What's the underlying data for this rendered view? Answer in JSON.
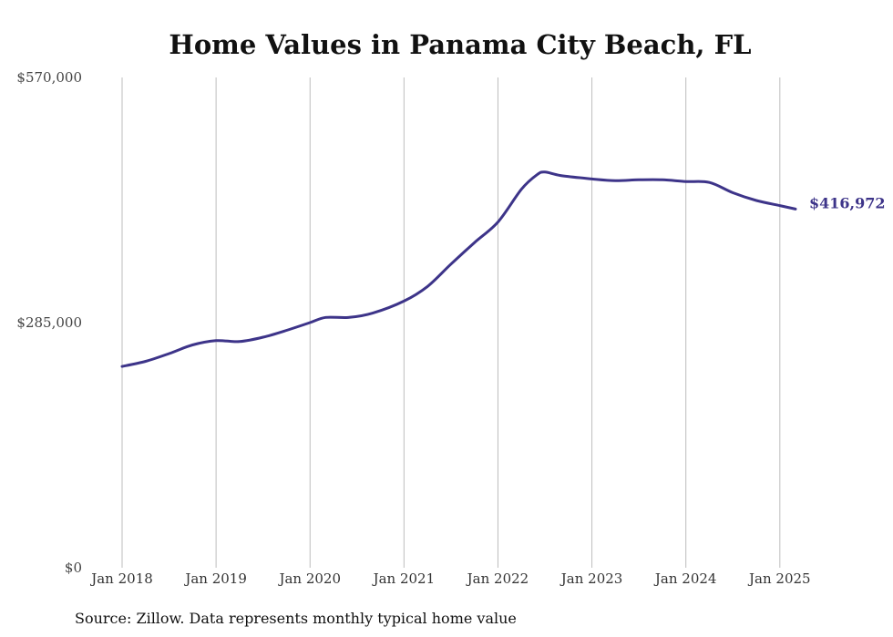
{
  "chart_data": {
    "type": "line",
    "title": "Home Values in Panama City Beach, FL",
    "source": "Source: Zillow. Data represents monthly typical home value",
    "xlabel": "",
    "ylabel": "",
    "ylim": [
      0,
      570000
    ],
    "xlim": [
      "2018-01",
      "2025-03"
    ],
    "y_ticks": [
      "$0",
      "$285,000",
      "$570,000"
    ],
    "x_ticks": [
      {
        "date": "2018-01",
        "label": "Jan 2018"
      },
      {
        "date": "2019-01",
        "label": "Jan 2019"
      },
      {
        "date": "2020-01",
        "label": "Jan 2020"
      },
      {
        "date": "2021-01",
        "label": "Jan 2021"
      },
      {
        "date": "2022-01",
        "label": "Jan 2022"
      },
      {
        "date": "2023-01",
        "label": "Jan 2023"
      },
      {
        "date": "2024-01",
        "label": "Jan 2024"
      },
      {
        "date": "2025-01",
        "label": "Jan 2025"
      }
    ],
    "grid": {
      "vertical": true,
      "horizontal": false
    },
    "colors": {
      "line": "#3d3489",
      "grid": "#bdbdbd"
    },
    "end_label": "$416,972",
    "series": [
      {
        "x": [
          "2018-01",
          "2018-04",
          "2018-07",
          "2018-10",
          "2019-01",
          "2019-04",
          "2019-07",
          "2019-10",
          "2020-01",
          "2020-03",
          "2020-06",
          "2020-09",
          "2021-01",
          "2021-04",
          "2021-07",
          "2021-10",
          "2022-01",
          "2022-04",
          "2022-06",
          "2022-07",
          "2022-09",
          "2023-01",
          "2023-04",
          "2023-07",
          "2023-10",
          "2024-01",
          "2024-04",
          "2024-07",
          "2024-10",
          "2025-01",
          "2025-03"
        ],
        "y": [
          234000,
          240000,
          249000,
          259000,
          264000,
          263000,
          268000,
          276000,
          285000,
          291000,
          291000,
          296000,
          310000,
          327000,
          353000,
          378000,
          402000,
          440000,
          457000,
          460000,
          456000,
          452000,
          450000,
          451000,
          451000,
          449000,
          448000,
          436000,
          427000,
          421000,
          416972
        ]
      }
    ]
  }
}
